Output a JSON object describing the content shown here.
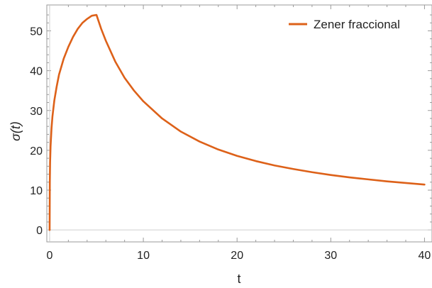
{
  "chart_data": {
    "type": "line",
    "xlabel": "t",
    "ylabel": "σ(t)",
    "xlim": [
      -0.3,
      40.8
    ],
    "ylim": [
      -3,
      56.5
    ],
    "x_ticks": [
      0,
      10,
      20,
      30,
      40
    ],
    "y_ticks": [
      0,
      10,
      20,
      30,
      40,
      50
    ],
    "legend_position": "top-right",
    "series": [
      {
        "name": "Zener fraccional",
        "color": "#DD6119",
        "x": [
          0,
          0.02,
          0.05,
          0.1,
          0.2,
          0.3,
          0.5,
          0.75,
          1,
          1.5,
          2,
          2.5,
          3,
          3.5,
          4,
          4.5,
          5,
          5.5,
          6,
          7,
          8,
          9,
          10,
          12,
          14,
          16,
          18,
          20,
          22,
          24,
          26,
          28,
          30,
          32,
          34,
          36,
          38,
          40
        ],
        "y": [
          0,
          12,
          17,
          21,
          25.5,
          28.5,
          32.5,
          36,
          39,
          43,
          46,
          48.5,
          50.5,
          52,
          53,
          53.8,
          54,
          50.5,
          47.5,
          42.3,
          38.2,
          35,
          32.3,
          28,
          24.7,
          22.2,
          20.2,
          18.6,
          17.3,
          16.2,
          15.3,
          14.5,
          13.8,
          13.2,
          12.7,
          12.2,
          11.8,
          11.4
        ]
      }
    ]
  }
}
